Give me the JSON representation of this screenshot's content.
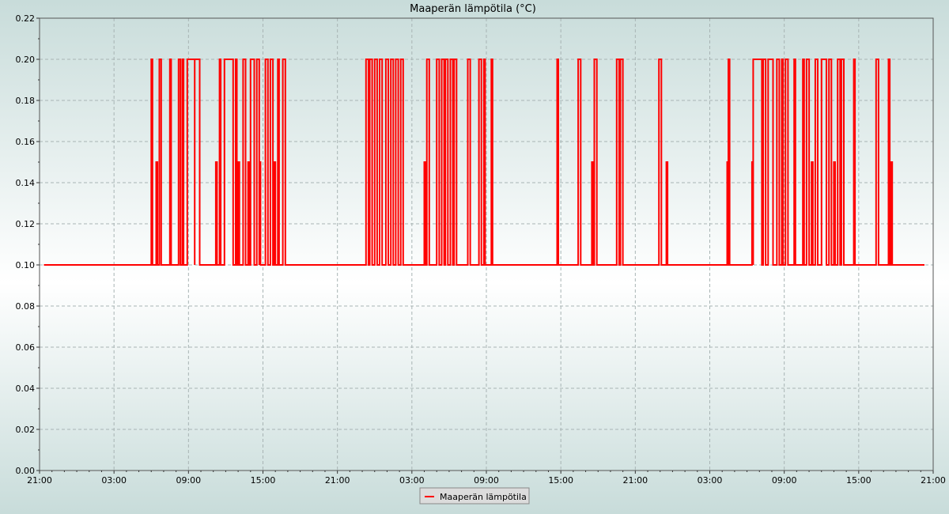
{
  "chart_data": {
    "type": "line",
    "title": "Maaperän lämpötila (°C)",
    "xlabel": "",
    "ylabel": "",
    "ylim": [
      0,
      0.22
    ],
    "xlim_hours": [
      0,
      72
    ],
    "y_ticks": [
      "0.00",
      "0.02",
      "0.04",
      "0.06",
      "0.08",
      "0.10",
      "0.12",
      "0.14",
      "0.16",
      "0.18",
      "0.20",
      "0.22"
    ],
    "x_ticks": [
      "21:00",
      "03:00",
      "09:00",
      "15:00",
      "21:00",
      "03:00",
      "09:00",
      "15:00",
      "21:00",
      "03:00",
      "09:00",
      "15:00",
      "21:00"
    ],
    "grid": true,
    "legend_position": "bottom-center",
    "colors": {
      "series": "#ff0000",
      "background_edge": "#c8dcda",
      "background_center": "#ffffff",
      "grid": "#a8b4b4"
    },
    "series": [
      {
        "name": "Maaperän lämpötila",
        "baseline": 0.1,
        "start_hour": 0.35,
        "end_hour": 71.3,
        "spikes": [
          [
            9.0,
            9.1,
            0.2
          ],
          [
            9.4,
            9.5,
            0.15
          ],
          [
            9.65,
            9.8,
            0.2
          ],
          [
            10.5,
            10.6,
            0.2
          ],
          [
            11.2,
            11.35,
            0.2
          ],
          [
            11.5,
            11.6,
            0.2
          ],
          [
            11.9,
            12.5,
            0.2
          ],
          [
            12.5,
            12.9,
            0.2
          ],
          [
            14.2,
            14.3,
            0.15
          ],
          [
            14.5,
            14.6,
            0.2
          ],
          [
            14.9,
            15.6,
            0.2
          ],
          [
            15.8,
            15.9,
            0.2
          ],
          [
            16.0,
            16.1,
            0.15
          ],
          [
            16.4,
            16.6,
            0.2
          ],
          [
            16.8,
            16.9,
            0.15
          ],
          [
            17.0,
            17.3,
            0.2
          ],
          [
            17.5,
            17.7,
            0.2
          ],
          [
            17.7,
            17.8,
            0.15
          ],
          [
            18.2,
            18.4,
            0.2
          ],
          [
            18.6,
            18.8,
            0.2
          ],
          [
            18.9,
            19.0,
            0.15
          ],
          [
            19.2,
            19.3,
            0.2
          ],
          [
            19.6,
            19.8,
            0.2
          ],
          [
            26.3,
            26.5,
            0.2
          ],
          [
            26.6,
            26.8,
            0.2
          ],
          [
            27.0,
            27.2,
            0.2
          ],
          [
            27.4,
            27.6,
            0.2
          ],
          [
            27.9,
            28.1,
            0.2
          ],
          [
            28.3,
            28.5,
            0.2
          ],
          [
            28.7,
            28.9,
            0.2
          ],
          [
            29.1,
            29.3,
            0.2
          ],
          [
            31.0,
            31.1,
            0.15
          ],
          [
            31.2,
            31.4,
            0.2
          ],
          [
            32.0,
            32.2,
            0.2
          ],
          [
            32.4,
            32.6,
            0.2
          ],
          [
            32.7,
            32.9,
            0.2
          ],
          [
            33.1,
            33.3,
            0.2
          ],
          [
            33.4,
            33.6,
            0.2
          ],
          [
            34.5,
            34.7,
            0.2
          ],
          [
            35.4,
            35.6,
            0.2
          ],
          [
            35.8,
            35.9,
            0.2
          ],
          [
            36.4,
            36.5,
            0.2
          ],
          [
            41.7,
            41.8,
            0.2
          ],
          [
            43.4,
            43.6,
            0.2
          ],
          [
            44.5,
            44.6,
            0.15
          ],
          [
            44.7,
            44.9,
            0.2
          ],
          [
            46.5,
            46.7,
            0.2
          ],
          [
            46.8,
            47.0,
            0.2
          ],
          [
            49.9,
            50.1,
            0.2
          ],
          [
            50.5,
            50.6,
            0.15
          ],
          [
            55.4,
            55.6,
            0.15
          ],
          [
            55.5,
            55.6,
            0.2
          ],
          [
            57.4,
            57.5,
            0.15
          ],
          [
            57.5,
            58.2,
            0.2
          ],
          [
            58.3,
            58.5,
            0.2
          ],
          [
            58.7,
            59.1,
            0.2
          ],
          [
            59.4,
            59.6,
            0.2
          ],
          [
            59.8,
            59.9,
            0.2
          ],
          [
            60.1,
            60.3,
            0.2
          ],
          [
            60.8,
            60.9,
            0.2
          ],
          [
            61.5,
            61.6,
            0.2
          ],
          [
            61.8,
            62.0,
            0.2
          ],
          [
            62.2,
            62.3,
            0.15
          ],
          [
            62.5,
            62.7,
            0.2
          ],
          [
            63.0,
            63.4,
            0.2
          ],
          [
            63.6,
            63.8,
            0.2
          ],
          [
            64.0,
            64.1,
            0.15
          ],
          [
            64.3,
            64.5,
            0.2
          ],
          [
            64.6,
            64.8,
            0.2
          ],
          [
            65.6,
            65.7,
            0.2
          ],
          [
            67.4,
            67.6,
            0.2
          ],
          [
            68.4,
            68.5,
            0.2
          ],
          [
            68.6,
            68.7,
            0.15
          ]
        ]
      }
    ]
  }
}
